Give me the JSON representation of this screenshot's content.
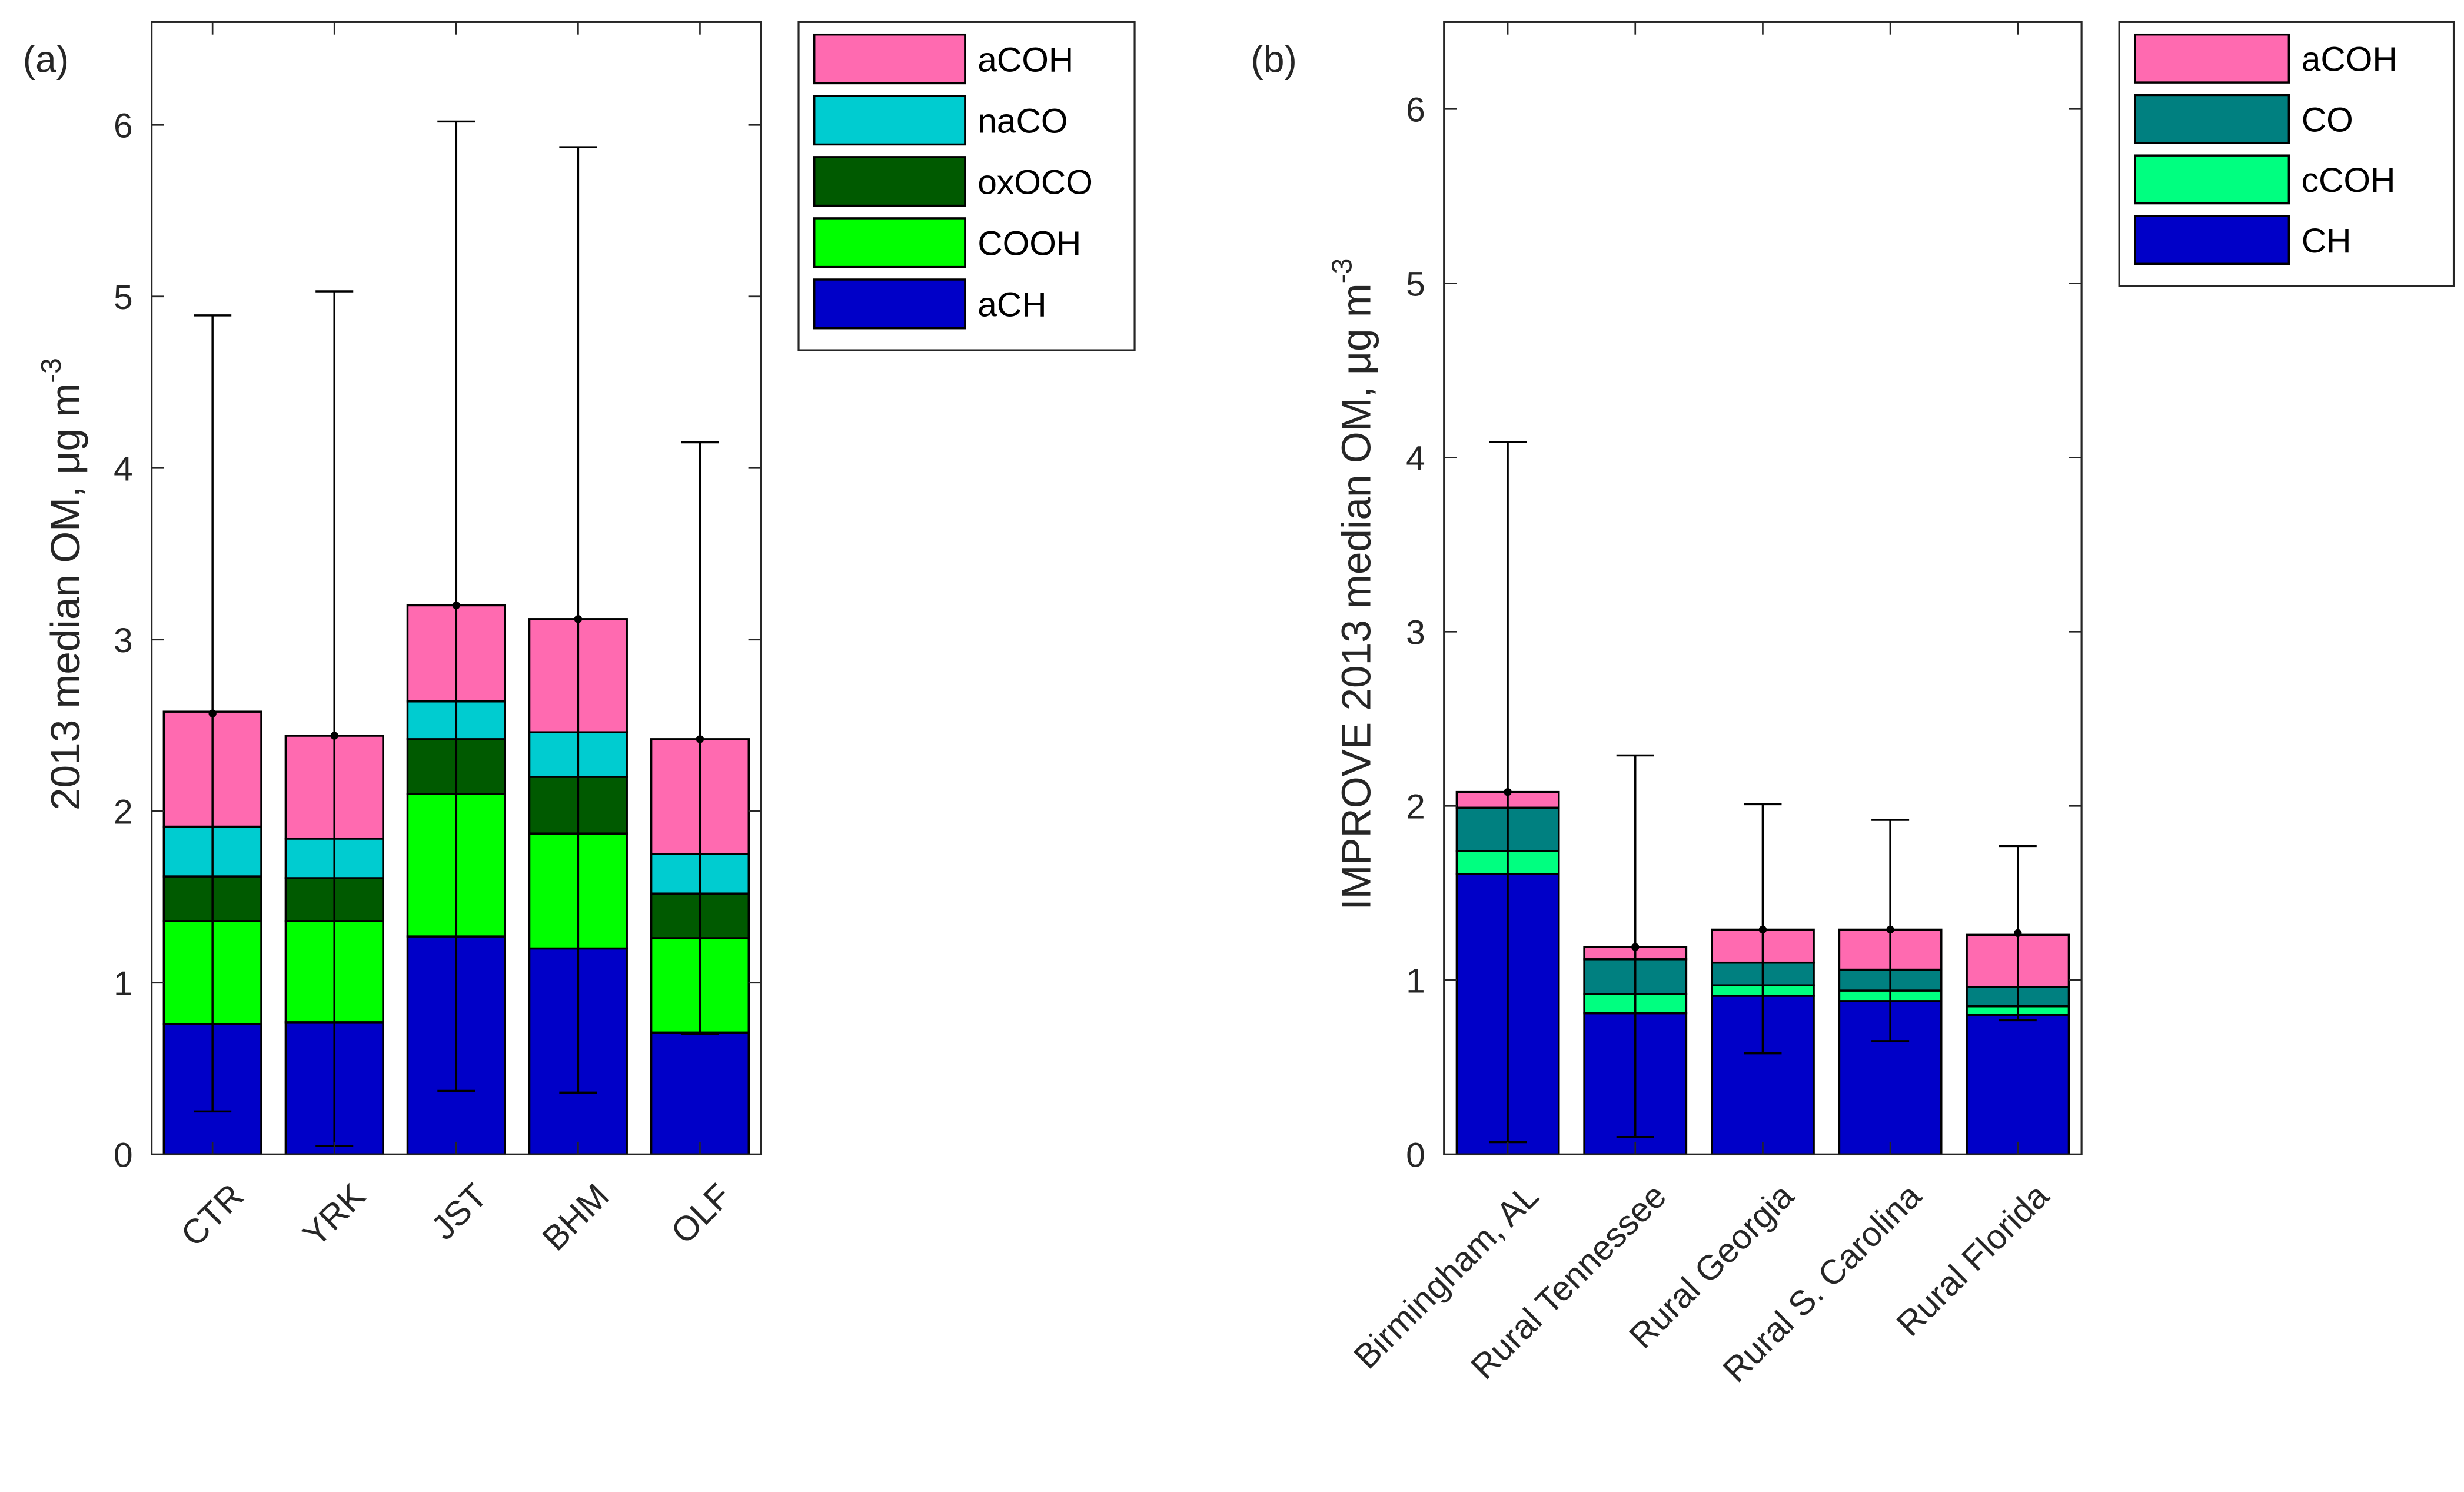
{
  "chart_data": [
    {
      "type": "bar",
      "stacked": true,
      "panel_label": "(a)",
      "title": "",
      "xlabel": "",
      "ylabel": "2013 median OM, μg m",
      "ylabel_superscript": "-3",
      "ylim": [
        0,
        6.6
      ],
      "yticks": [
        0,
        1,
        2,
        3,
        4,
        5,
        6
      ],
      "grid": false,
      "legend_position": "outside-top-right",
      "categories": [
        "CTR",
        "YRK",
        "JST",
        "BHM",
        "OLF"
      ],
      "series": [
        {
          "name": "aCH",
          "color": "#0000C8",
          "values": [
            0.76,
            0.77,
            1.27,
            1.2,
            0.71
          ]
        },
        {
          "name": "COOH",
          "color": "#00FF00",
          "values": [
            0.6,
            0.59,
            0.83,
            0.67,
            0.55
          ]
        },
        {
          "name": "oxOCO",
          "color": "#005A00",
          "values": [
            0.26,
            0.25,
            0.32,
            0.33,
            0.26
          ]
        },
        {
          "name": "naCO",
          "color": "#00CCD0",
          "values": [
            0.29,
            0.23,
            0.22,
            0.26,
            0.23
          ]
        },
        {
          "name": "aCOH",
          "color": "#FF6AB0",
          "values": [
            0.67,
            0.6,
            0.56,
            0.66,
            0.67
          ]
        }
      ],
      "totals": [
        2.57,
        2.44,
        3.2,
        3.12,
        2.42
      ],
      "error_bars": {
        "lower": [
          0.25,
          0.05,
          0.37,
          0.36,
          0.7
        ],
        "upper": [
          4.89,
          5.03,
          6.02,
          5.87,
          4.15
        ]
      },
      "legend_order": [
        "aCOH",
        "naCO",
        "oxOCO",
        "COOH",
        "aCH"
      ]
    },
    {
      "type": "bar",
      "stacked": true,
      "panel_label": "(b)",
      "title": "",
      "xlabel": "",
      "ylabel": "IMPROVE 2013 median OM, μg m",
      "ylabel_superscript": "-3",
      "ylim": [
        0,
        6.5
      ],
      "yticks": [
        0,
        1,
        2,
        3,
        4,
        5,
        6
      ],
      "grid": false,
      "legend_position": "outside-top-right",
      "categories": [
        "Birmingham, AL",
        "Rural Tennessee",
        "Rural Georgia",
        "Rural S. Carolina",
        "Rural Florida"
      ],
      "series": [
        {
          "name": "CH",
          "color": "#0000C8",
          "values": [
            1.61,
            0.81,
            0.91,
            0.88,
            0.8
          ]
        },
        {
          "name": "cCOH",
          "color": "#00FF80",
          "values": [
            0.13,
            0.11,
            0.06,
            0.06,
            0.05
          ]
        },
        {
          "name": "CO",
          "color": "#008080",
          "values": [
            0.25,
            0.2,
            0.13,
            0.12,
            0.11
          ]
        },
        {
          "name": "aCOH",
          "color": "#FF6AB0",
          "values": [
            0.09,
            0.07,
            0.19,
            0.23,
            0.3
          ]
        }
      ],
      "totals": [
        2.08,
        1.19,
        1.29,
        1.29,
        1.27
      ],
      "error_bars": {
        "lower": [
          0.07,
          0.1,
          0.58,
          0.65,
          0.77
        ],
        "upper": [
          4.09,
          2.29,
          2.01,
          1.92,
          1.77
        ]
      },
      "legend_order": [
        "aCOH",
        "CO",
        "cCOH",
        "CH"
      ]
    }
  ]
}
